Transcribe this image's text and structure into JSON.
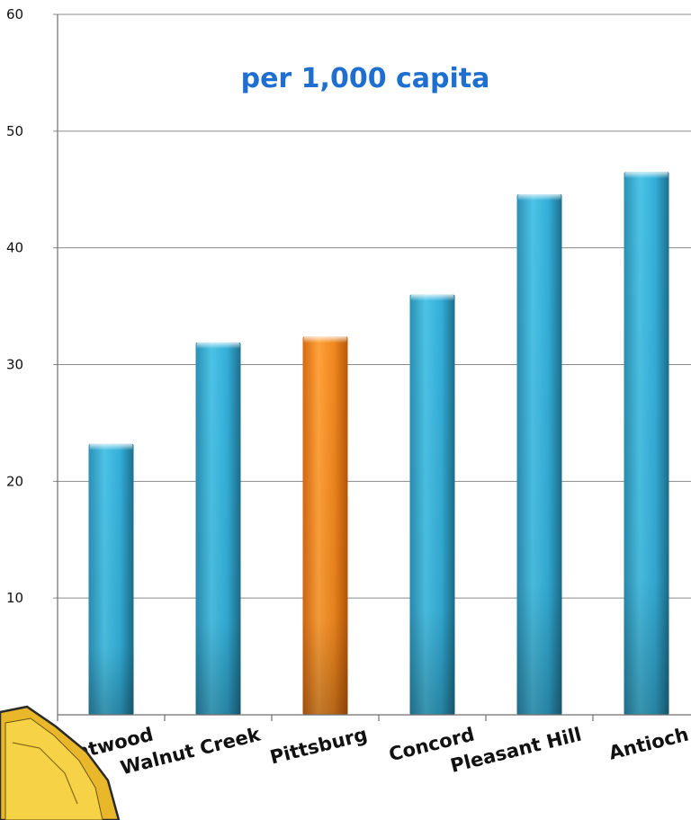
{
  "chart_data": {
    "type": "bar",
    "title": "per 1,000 capita",
    "categories": [
      "Brentwood",
      "Walnut Creek",
      "Pittsburg",
      "Concord",
      "Pleasant Hill",
      "Antioch"
    ],
    "values": [
      23.2,
      31.9,
      32.4,
      36.0,
      44.6,
      46.5
    ],
    "highlight_category": "Pittsburg",
    "ylim": [
      0,
      60
    ],
    "yticks": [
      "0",
      "10",
      "20",
      "30",
      "40",
      "50",
      "60"
    ],
    "xlabel": "",
    "ylabel": "",
    "grid": true,
    "legend": "none",
    "colors": {
      "bar": "#35b5dc",
      "highlight": "#f0861e",
      "title": "#1f6fd0",
      "axis": "#7a7a7a"
    }
  }
}
